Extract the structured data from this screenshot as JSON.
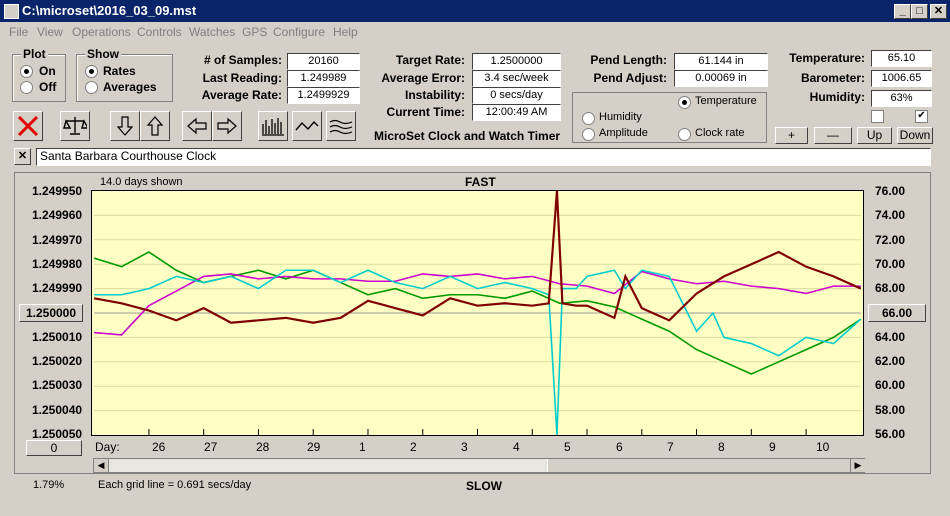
{
  "window": {
    "title": "C:\\microset\\2016_03_09.mst",
    "buttons": [
      "_",
      "□",
      "✕"
    ]
  },
  "menu": [
    "File",
    "View",
    "Operations",
    "Controls",
    "Watches",
    "GPS",
    "Configure",
    "Help"
  ],
  "plot_group": {
    "title": "Plot",
    "options": [
      "On",
      "Off"
    ],
    "selected": "On"
  },
  "show_group": {
    "title": "Show",
    "options": [
      "Rates",
      "Averages"
    ],
    "selected": "Rates"
  },
  "stats": {
    "samples_label": "# of Samples:",
    "samples": "20160",
    "last_reading_label": "Last Reading:",
    "last_reading": "1.249989",
    "average_rate_label": "Average Rate:",
    "average_rate": "1.2499929",
    "target_rate_label": "Target Rate:",
    "target_rate": "1.2500000",
    "average_error_label": "Average Error:",
    "average_error": "3.4 sec/week",
    "instability_label": "Instability:",
    "instability": "0 secs/day",
    "current_time_label": "Current Time:",
    "current_time": "12:00:49 AM",
    "pend_length_label": "Pend Length:",
    "pend_length": "61.144 in",
    "pend_adjust_label": "Pend Adjust:",
    "pend_adjust": "0.00069 in",
    "temperature_label": "Temperature:",
    "temperature": "65.10",
    "barometer_label": "Barometer:",
    "barometer": "1006.65",
    "humidity_label": "Humidity:",
    "humidity": "63%"
  },
  "app_caption": "MicroSet Clock and Watch Timer",
  "aux_options": {
    "temperature": "Temperature",
    "humidity": "Humidity",
    "amplitude": "Amplitude",
    "clock_rate": "Clock rate",
    "selected": "Temperature",
    "colors": {
      "temperature": "#009900",
      "humidity": "#cc00cc",
      "amplitude": "#00cccc",
      "clock_rate": "#7f0000"
    }
  },
  "adjust_buttons": [
    "+",
    "—",
    "Up",
    "Down"
  ],
  "clock_name": "Santa Barbara Courthouse Clock",
  "toolbar_icons": [
    "clear-icon",
    "balance-icon",
    "arrow-down-icon",
    "arrow-up-icon",
    "arrow-left-icon",
    "arrow-right-icon",
    "bar-chart-icon",
    "wave-icon",
    "multi-wave-icon"
  ],
  "graph": {
    "days_shown": "14.0 days shown",
    "fast_label": "FAST",
    "slow_label": "SLOW",
    "left_center_button": "1.250000",
    "right_center_button": "66.00",
    "bottom_left_button": "0",
    "percent": "1.79%",
    "grid_note": "Each grid line = 0.691 secs/day",
    "day_label": "Day:"
  },
  "chart_data": {
    "type": "line",
    "title": "FAST",
    "y_left_ticks": [
      "1.249950",
      "1.249960",
      "1.249970",
      "1.249980",
      "1.249990",
      "1.250000",
      "1.250010",
      "1.250020",
      "1.250030",
      "1.250040",
      "1.250050"
    ],
    "y_right_ticks": [
      "76.00",
      "74.00",
      "72.00",
      "70.00",
      "68.00",
      "66.00",
      "64.00",
      "62.00",
      "60.00",
      "58.00",
      "56.00"
    ],
    "x_ticks": [
      "26",
      "27",
      "28",
      "29",
      "1",
      "2",
      "3",
      "4",
      "5",
      "6",
      "7",
      "8",
      "9",
      "10"
    ],
    "xlim": [
      25,
      39
    ],
    "ylim_left": [
      1.24995,
      1.25005
    ],
    "ylim_right": [
      56,
      76
    ],
    "series": [
      {
        "name": "Temperature",
        "axis": "right",
        "color": "#009900",
        "x": [
          25.0,
          25.5,
          26.0,
          26.5,
          27.0,
          27.5,
          28.0,
          28.5,
          29.0,
          29.5,
          30.0,
          30.5,
          31.0,
          31.5,
          32.0,
          32.5,
          33.0,
          33.5,
          34.0,
          34.5,
          35.0,
          35.5,
          36.0,
          36.5,
          37.0,
          37.5,
          38.0,
          38.5,
          39.0
        ],
        "y": [
          70.5,
          69.8,
          71.0,
          69.5,
          68.5,
          69.0,
          69.5,
          68.8,
          69.5,
          68.5,
          67.5,
          68.0,
          67.2,
          67.5,
          67.5,
          67.2,
          67.8,
          66.8,
          67.0,
          66.5,
          65.5,
          64.5,
          63.0,
          62.0,
          61.0,
          62.0,
          63.0,
          64.0,
          65.5
        ]
      },
      {
        "name": "Humidity",
        "axis": "left",
        "color": "#cc00cc",
        "x": [
          25.0,
          25.5,
          26.0,
          26.5,
          27.0,
          27.5,
          28.0,
          28.5,
          29.0,
          29.5,
          30.0,
          30.5,
          31.0,
          31.5,
          32.0,
          32.5,
          33.0,
          33.5,
          34.0,
          34.5,
          35.0,
          35.5,
          36.0,
          36.5,
          37.0,
          37.5,
          38.0,
          38.5,
          39.0
        ],
        "y": [
          1.250008,
          1.250009,
          1.249997,
          1.249991,
          1.249985,
          1.249984,
          1.249986,
          1.249985,
          1.249986,
          1.249986,
          1.249987,
          1.249987,
          1.249984,
          1.249985,
          1.249984,
          1.249986,
          1.249985,
          1.249988,
          1.249989,
          1.249992,
          1.249983,
          1.249986,
          1.249988,
          1.249987,
          1.249989,
          1.24999,
          1.249992,
          1.249989,
          1.249989
        ]
      },
      {
        "name": "Amplitude",
        "axis": "right",
        "color": "#00cccc",
        "x": [
          25.0,
          25.5,
          26.0,
          26.5,
          27.0,
          27.5,
          28.0,
          28.5,
          29.0,
          29.5,
          30.0,
          30.5,
          31.0,
          31.5,
          32.0,
          32.5,
          33.0,
          33.3,
          33.45,
          33.55,
          33.8,
          34.0,
          34.5,
          34.7,
          35.0,
          35.5,
          36.0,
          36.3,
          36.5,
          37.0,
          37.5,
          38.0,
          38.5,
          39.0
        ],
        "y": [
          67.5,
          67.5,
          68.0,
          69.0,
          68.5,
          69.0,
          68.0,
          69.5,
          69.5,
          68.5,
          69.5,
          68.5,
          68.0,
          69.0,
          68.0,
          68.5,
          68.0,
          67.5,
          56.0,
          68.0,
          68.0,
          69.0,
          69.5,
          68.0,
          69.5,
          69.0,
          64.5,
          66.0,
          64.0,
          63.5,
          62.5,
          64.0,
          63.5,
          65.5
        ]
      },
      {
        "name": "Clock rate",
        "axis": "left",
        "color": "#7f0000",
        "x": [
          25.0,
          25.5,
          26.0,
          26.5,
          27.0,
          27.5,
          28.0,
          28.5,
          29.0,
          29.5,
          30.0,
          30.5,
          31.0,
          31.5,
          32.0,
          32.5,
          33.0,
          33.3,
          33.45,
          33.55,
          33.8,
          34.0,
          34.5,
          34.7,
          35.0,
          35.5,
          36.0,
          36.5,
          37.0,
          37.5,
          38.0,
          38.5,
          39.0
        ],
        "y": [
          1.249994,
          1.249996,
          1.249999,
          1.250003,
          1.249998,
          1.250004,
          1.250003,
          1.250002,
          1.250004,
          1.250002,
          1.249995,
          1.249998,
          1.250001,
          1.249994,
          1.249997,
          1.249996,
          1.249997,
          1.249996,
          1.24995,
          1.249996,
          1.249997,
          1.249997,
          1.250002,
          1.249985,
          1.249998,
          1.250003,
          1.249992,
          1.249985,
          1.24998,
          1.249975,
          1.249981,
          1.249985,
          1.24999
        ]
      }
    ]
  }
}
